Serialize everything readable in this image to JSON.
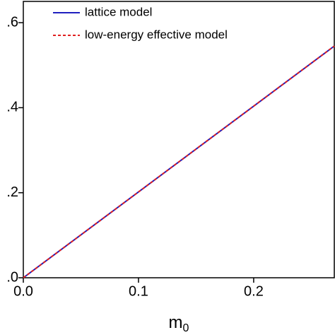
{
  "chart_data": {
    "type": "line",
    "xlabel": "m",
    "xlabel_subscript": "0",
    "x": [
      0,
      0.27
    ],
    "series": [
      {
        "name": "lattice model",
        "color": "#1f1fbf",
        "dash": "solid",
        "values": [
          0,
          0.545
        ]
      },
      {
        "name": "low-energy effective model",
        "color": "#e02020",
        "dash": "dashed",
        "values": [
          0,
          0.545
        ]
      }
    ],
    "xlim": [
      0,
      0.27
    ],
    "ylim": [
      0,
      0.65
    ],
    "xticks": [
      {
        "value": 0,
        "label": "0.0"
      },
      {
        "value": 0.1,
        "label": "0.1"
      },
      {
        "value": 0.2,
        "label": "0.2"
      }
    ],
    "yticks": [
      {
        "value": 0,
        "label": ".0"
      },
      {
        "value": 0.2,
        "label": ".2"
      },
      {
        "value": 0.4,
        "label": ".4"
      },
      {
        "value": 0.6,
        "label": ".6"
      }
    ],
    "legend": "upper-left"
  }
}
